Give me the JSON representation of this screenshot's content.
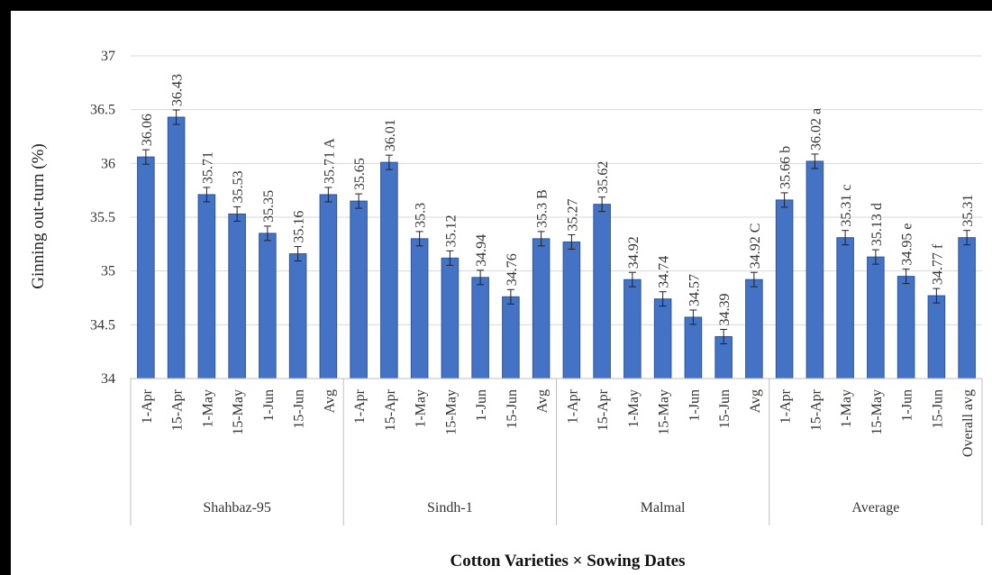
{
  "chart_data": {
    "type": "bar",
    "ylabel": "Ginning out-turn (%)",
    "xlabel": "Cotton Varieties × Sowing Dates",
    "ylim": [
      34,
      37
    ],
    "yticks": [
      "34",
      "34.5",
      "35",
      "35.5",
      "36",
      "36.5",
      "37"
    ],
    "grid": true,
    "bar_color": "#4472C4",
    "groups": [
      {
        "name": "Shahbaz-95",
        "categories": [
          "1-Apr",
          "15-Apr",
          "1-May",
          "15-May",
          "1-Jun",
          "15-Jun",
          "Avg"
        ],
        "values": [
          36.06,
          36.43,
          35.71,
          35.53,
          35.35,
          35.16,
          35.71
        ],
        "labels": [
          "36.06",
          "36.43",
          "35.71",
          "35.53",
          "35.35",
          "35.16",
          "35.71 A"
        ]
      },
      {
        "name": "Sindh-1",
        "categories": [
          "1-Apr",
          "15-Apr",
          "1-May",
          "15-May",
          "1-Jun",
          "15-Jun",
          "Avg"
        ],
        "values": [
          35.65,
          36.01,
          35.3,
          35.12,
          34.94,
          34.76,
          35.3
        ],
        "labels": [
          "35.65",
          "36.01",
          "35.3",
          "35.12",
          "34.94",
          "34.76",
          "35.3 B"
        ]
      },
      {
        "name": "Malmal",
        "categories": [
          "1-Apr",
          "15-Apr",
          "1-May",
          "15-May",
          "1-Jun",
          "15-Jun",
          "Avg"
        ],
        "values": [
          35.27,
          35.62,
          34.92,
          34.74,
          34.57,
          34.39,
          34.92
        ],
        "labels": [
          "35.27",
          "35.62",
          "34.92",
          "34.74",
          "34.57",
          "34.39",
          "34.92 C"
        ]
      },
      {
        "name": "Average",
        "categories": [
          "1-Apr",
          "15-Apr",
          "1-May",
          "15-May",
          "1-Jun",
          "15-Jun",
          "Overall avg"
        ],
        "values": [
          35.66,
          36.02,
          35.31,
          35.13,
          34.95,
          34.77,
          35.31
        ],
        "labels": [
          "35.66 b",
          "36.02 a",
          "35.31 c",
          "35.13 d",
          "34.95 e",
          "34.77 f",
          "35.31"
        ]
      }
    ]
  }
}
